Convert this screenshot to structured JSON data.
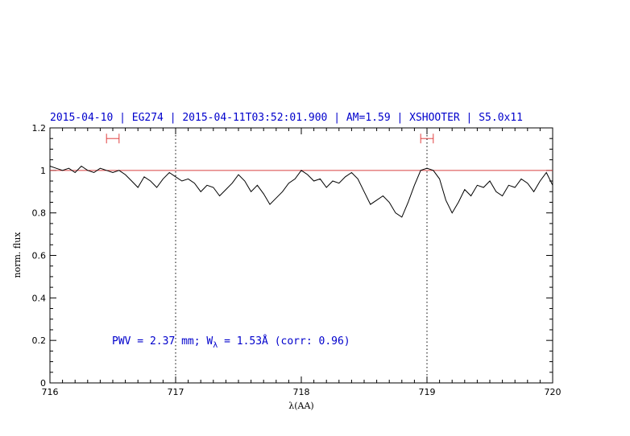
{
  "title": "2015-04-10 | EG274 | 2015-04-11T03:52:01.900 | AM=1.59 | XSHOOTER | S5.0x11",
  "chart_data": {
    "type": "line",
    "xlabel": "λ(AA)",
    "ylabel": "norm. flux",
    "xlim": [
      716,
      720
    ],
    "ylim": [
      0,
      1.2
    ],
    "x_ticks": [
      "716",
      "717",
      "718",
      "719",
      "720"
    ],
    "y_ticks": [
      "0",
      "0.2",
      "0.4",
      "0.6",
      "0.8",
      "1",
      "1.2"
    ],
    "x_tick_values": [
      716,
      717,
      718,
      719,
      720
    ],
    "y_tick_values": [
      0,
      0.2,
      0.4,
      0.6,
      0.8,
      1.0,
      1.2
    ],
    "reference_line": {
      "y": 1.0,
      "color": "#d84040"
    },
    "vertical_markers": [
      717.0,
      719.0
    ],
    "continuum_intervals": [
      {
        "x_start": 716.45,
        "x_end": 716.55,
        "y": 1.15,
        "color": "#e04040"
      },
      {
        "x_start": 718.95,
        "x_end": 719.05,
        "y": 1.15,
        "color": "#e04040"
      }
    ],
    "annotation": {
      "pwv_text": "PWV = 2.37 mm; W",
      "sub": "λ",
      "rest_text": " = 1.53Å (corr: 0.96)"
    },
    "series": [
      {
        "color": "#000000",
        "x": [
          716.0,
          716.05,
          716.1,
          716.15,
          716.2,
          716.25,
          716.3,
          716.35,
          716.4,
          716.45,
          716.5,
          716.55,
          716.6,
          716.65,
          716.7,
          716.75,
          716.8,
          716.85,
          716.9,
          716.95,
          717.0,
          717.05,
          717.1,
          717.15,
          717.2,
          717.25,
          717.3,
          717.35,
          717.4,
          717.45,
          717.5,
          717.55,
          717.6,
          717.65,
          717.7,
          717.75,
          717.8,
          717.85,
          717.9,
          717.95,
          718.0,
          718.05,
          718.1,
          718.15,
          718.2,
          718.25,
          718.3,
          718.35,
          718.4,
          718.45,
          718.5,
          718.55,
          718.6,
          718.65,
          718.7,
          718.75,
          718.8,
          718.85,
          718.9,
          718.95,
          719.0,
          719.05,
          719.1,
          719.15,
          719.2,
          719.25,
          719.3,
          719.35,
          719.4,
          719.45,
          719.5,
          719.55,
          719.6,
          719.65,
          719.7,
          719.75,
          719.8,
          719.85,
          719.9,
          719.95,
          720.0
        ],
        "y": [
          1.02,
          1.01,
          1.0,
          1.01,
          0.99,
          1.02,
          1.0,
          0.99,
          1.01,
          1.0,
          0.99,
          1.0,
          0.98,
          0.95,
          0.92,
          0.97,
          0.95,
          0.92,
          0.96,
          0.99,
          0.97,
          0.95,
          0.96,
          0.94,
          0.9,
          0.93,
          0.92,
          0.88,
          0.91,
          0.94,
          0.98,
          0.95,
          0.9,
          0.93,
          0.89,
          0.84,
          0.87,
          0.9,
          0.94,
          0.96,
          1.0,
          0.98,
          0.95,
          0.96,
          0.92,
          0.95,
          0.94,
          0.97,
          0.99,
          0.96,
          0.9,
          0.84,
          0.86,
          0.88,
          0.85,
          0.8,
          0.78,
          0.85,
          0.93,
          1.0,
          1.01,
          1.0,
          0.96,
          0.86,
          0.8,
          0.85,
          0.91,
          0.88,
          0.93,
          0.92,
          0.95,
          0.9,
          0.88,
          0.93,
          0.92,
          0.96,
          0.94,
          0.9,
          0.95,
          0.99,
          0.93
        ]
      }
    ]
  }
}
